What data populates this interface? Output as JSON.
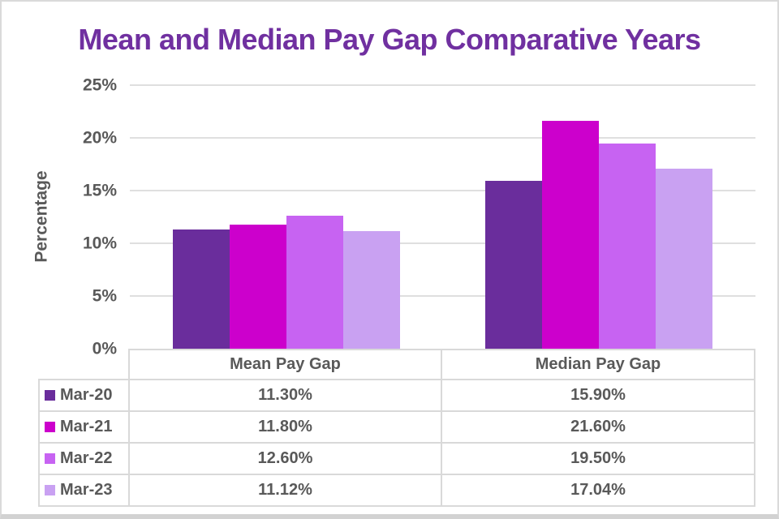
{
  "chart_data": {
    "type": "bar",
    "title": "Mean and Median Pay Gap Comparative Years",
    "title_color": "#7030A0",
    "ylabel": "Percentage",
    "ylim": [
      0,
      25
    ],
    "ytick_step": 5,
    "yticks": [
      "0%",
      "5%",
      "10%",
      "15%",
      "20%",
      "25%"
    ],
    "grid": true,
    "gridline_color": "#dfdfdf",
    "axis_text_color": "#595959",
    "legend_position": "table-left",
    "categories": [
      "Mean Pay Gap",
      "Median Pay Gap"
    ],
    "series": [
      {
        "name": "Mar-20",
        "color": "#6A2D9C",
        "values": [
          11.3,
          15.9
        ],
        "labels": [
          "11.30%",
          "15.90%"
        ]
      },
      {
        "name": "Mar-21",
        "color": "#CC00CC",
        "values": [
          11.8,
          21.6
        ],
        "labels": [
          "11.80%",
          "21.60%"
        ]
      },
      {
        "name": "Mar-22",
        "color": "#C763F2",
        "values": [
          12.6,
          19.5
        ],
        "labels": [
          "12.60%",
          "19.50%"
        ]
      },
      {
        "name": "Mar-23",
        "color": "#C9A1F2",
        "values": [
          11.12,
          17.04
        ],
        "labels": [
          "11.12%",
          "17.04%"
        ]
      }
    ]
  }
}
